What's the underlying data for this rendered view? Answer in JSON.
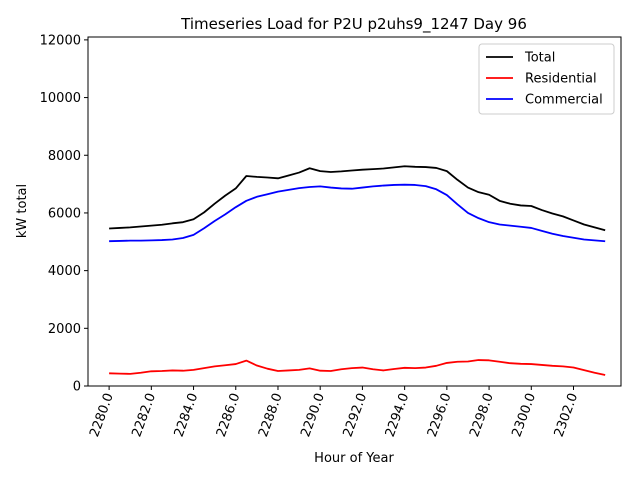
{
  "chart_data": {
    "type": "line",
    "title": "Timeseries Load for P2U p2uhs9_1247  Day 96",
    "xlabel": "Hour of Year",
    "ylabel": "kW total",
    "xlim": [
      2279.0,
      2304.25
    ],
    "ylim": [
      0,
      12100
    ],
    "x_ticks": [
      2280,
      2282,
      2284,
      2286,
      2288,
      2290,
      2292,
      2294,
      2296,
      2298,
      2300,
      2302
    ],
    "x_tick_labels": [
      "2280.0",
      "2282.0",
      "2284.0",
      "2286.0",
      "2288.0",
      "2290.0",
      "2292.0",
      "2294.0",
      "2296.0",
      "2298.0",
      "2300.0",
      "2302.0"
    ],
    "y_ticks": [
      0,
      2000,
      4000,
      6000,
      8000,
      10000,
      12000
    ],
    "y_tick_labels": [
      "0",
      "2000",
      "4000",
      "6000",
      "8000",
      "10000",
      "12000"
    ],
    "legend_position": "top-right",
    "x": [
      2280.0,
      2280.5,
      2281.0,
      2281.5,
      2282.0,
      2282.5,
      2283.0,
      2283.5,
      2284.0,
      2284.5,
      2285.0,
      2285.5,
      2286.0,
      2286.5,
      2287.0,
      2287.5,
      2288.0,
      2288.5,
      2289.0,
      2289.5,
      2290.0,
      2290.5,
      2291.0,
      2291.5,
      2292.0,
      2292.5,
      2293.0,
      2293.5,
      2294.0,
      2294.5,
      2295.0,
      2295.5,
      2296.0,
      2296.5,
      2297.0,
      2297.5,
      2298.0,
      2298.5,
      2299.0,
      2299.5,
      2300.0,
      2300.5,
      2301.0,
      2301.5,
      2302.0,
      2302.5,
      2303.0,
      2303.5
    ],
    "series": [
      {
        "name": "Total",
        "color": "#000000",
        "values": [
          5460,
          5480,
          5500,
          5530,
          5560,
          5590,
          5640,
          5680,
          5780,
          6020,
          6320,
          6600,
          6850,
          7280,
          7250,
          7230,
          7200,
          7300,
          7400,
          7550,
          7450,
          7420,
          7440,
          7470,
          7500,
          7520,
          7540,
          7580,
          7620,
          7600,
          7590,
          7560,
          7450,
          7150,
          6880,
          6720,
          6630,
          6420,
          6320,
          6260,
          6240,
          6100,
          5980,
          5880,
          5740,
          5600,
          5500,
          5400
        ]
      },
      {
        "name": "Residential",
        "color": "#ff0000",
        "values": [
          440,
          430,
          420,
          460,
          510,
          520,
          540,
          530,
          560,
          620,
          680,
          720,
          760,
          880,
          710,
          600,
          520,
          540,
          560,
          610,
          530,
          520,
          580,
          620,
          640,
          580,
          540,
          590,
          630,
          620,
          640,
          700,
          800,
          840,
          850,
          900,
          890,
          840,
          790,
          770,
          760,
          730,
          700,
          680,
          640,
          550,
          460,
          380
        ]
      },
      {
        "name": "Commercial",
        "color": "#0000ff",
        "values": [
          5020,
          5030,
          5040,
          5040,
          5050,
          5060,
          5080,
          5130,
          5240,
          5470,
          5720,
          5950,
          6200,
          6420,
          6560,
          6650,
          6740,
          6800,
          6860,
          6900,
          6920,
          6880,
          6850,
          6840,
          6880,
          6920,
          6950,
          6970,
          6980,
          6970,
          6930,
          6820,
          6620,
          6300,
          6000,
          5820,
          5680,
          5600,
          5560,
          5520,
          5480,
          5380,
          5280,
          5200,
          5140,
          5080,
          5050,
          5020
        ]
      }
    ]
  }
}
